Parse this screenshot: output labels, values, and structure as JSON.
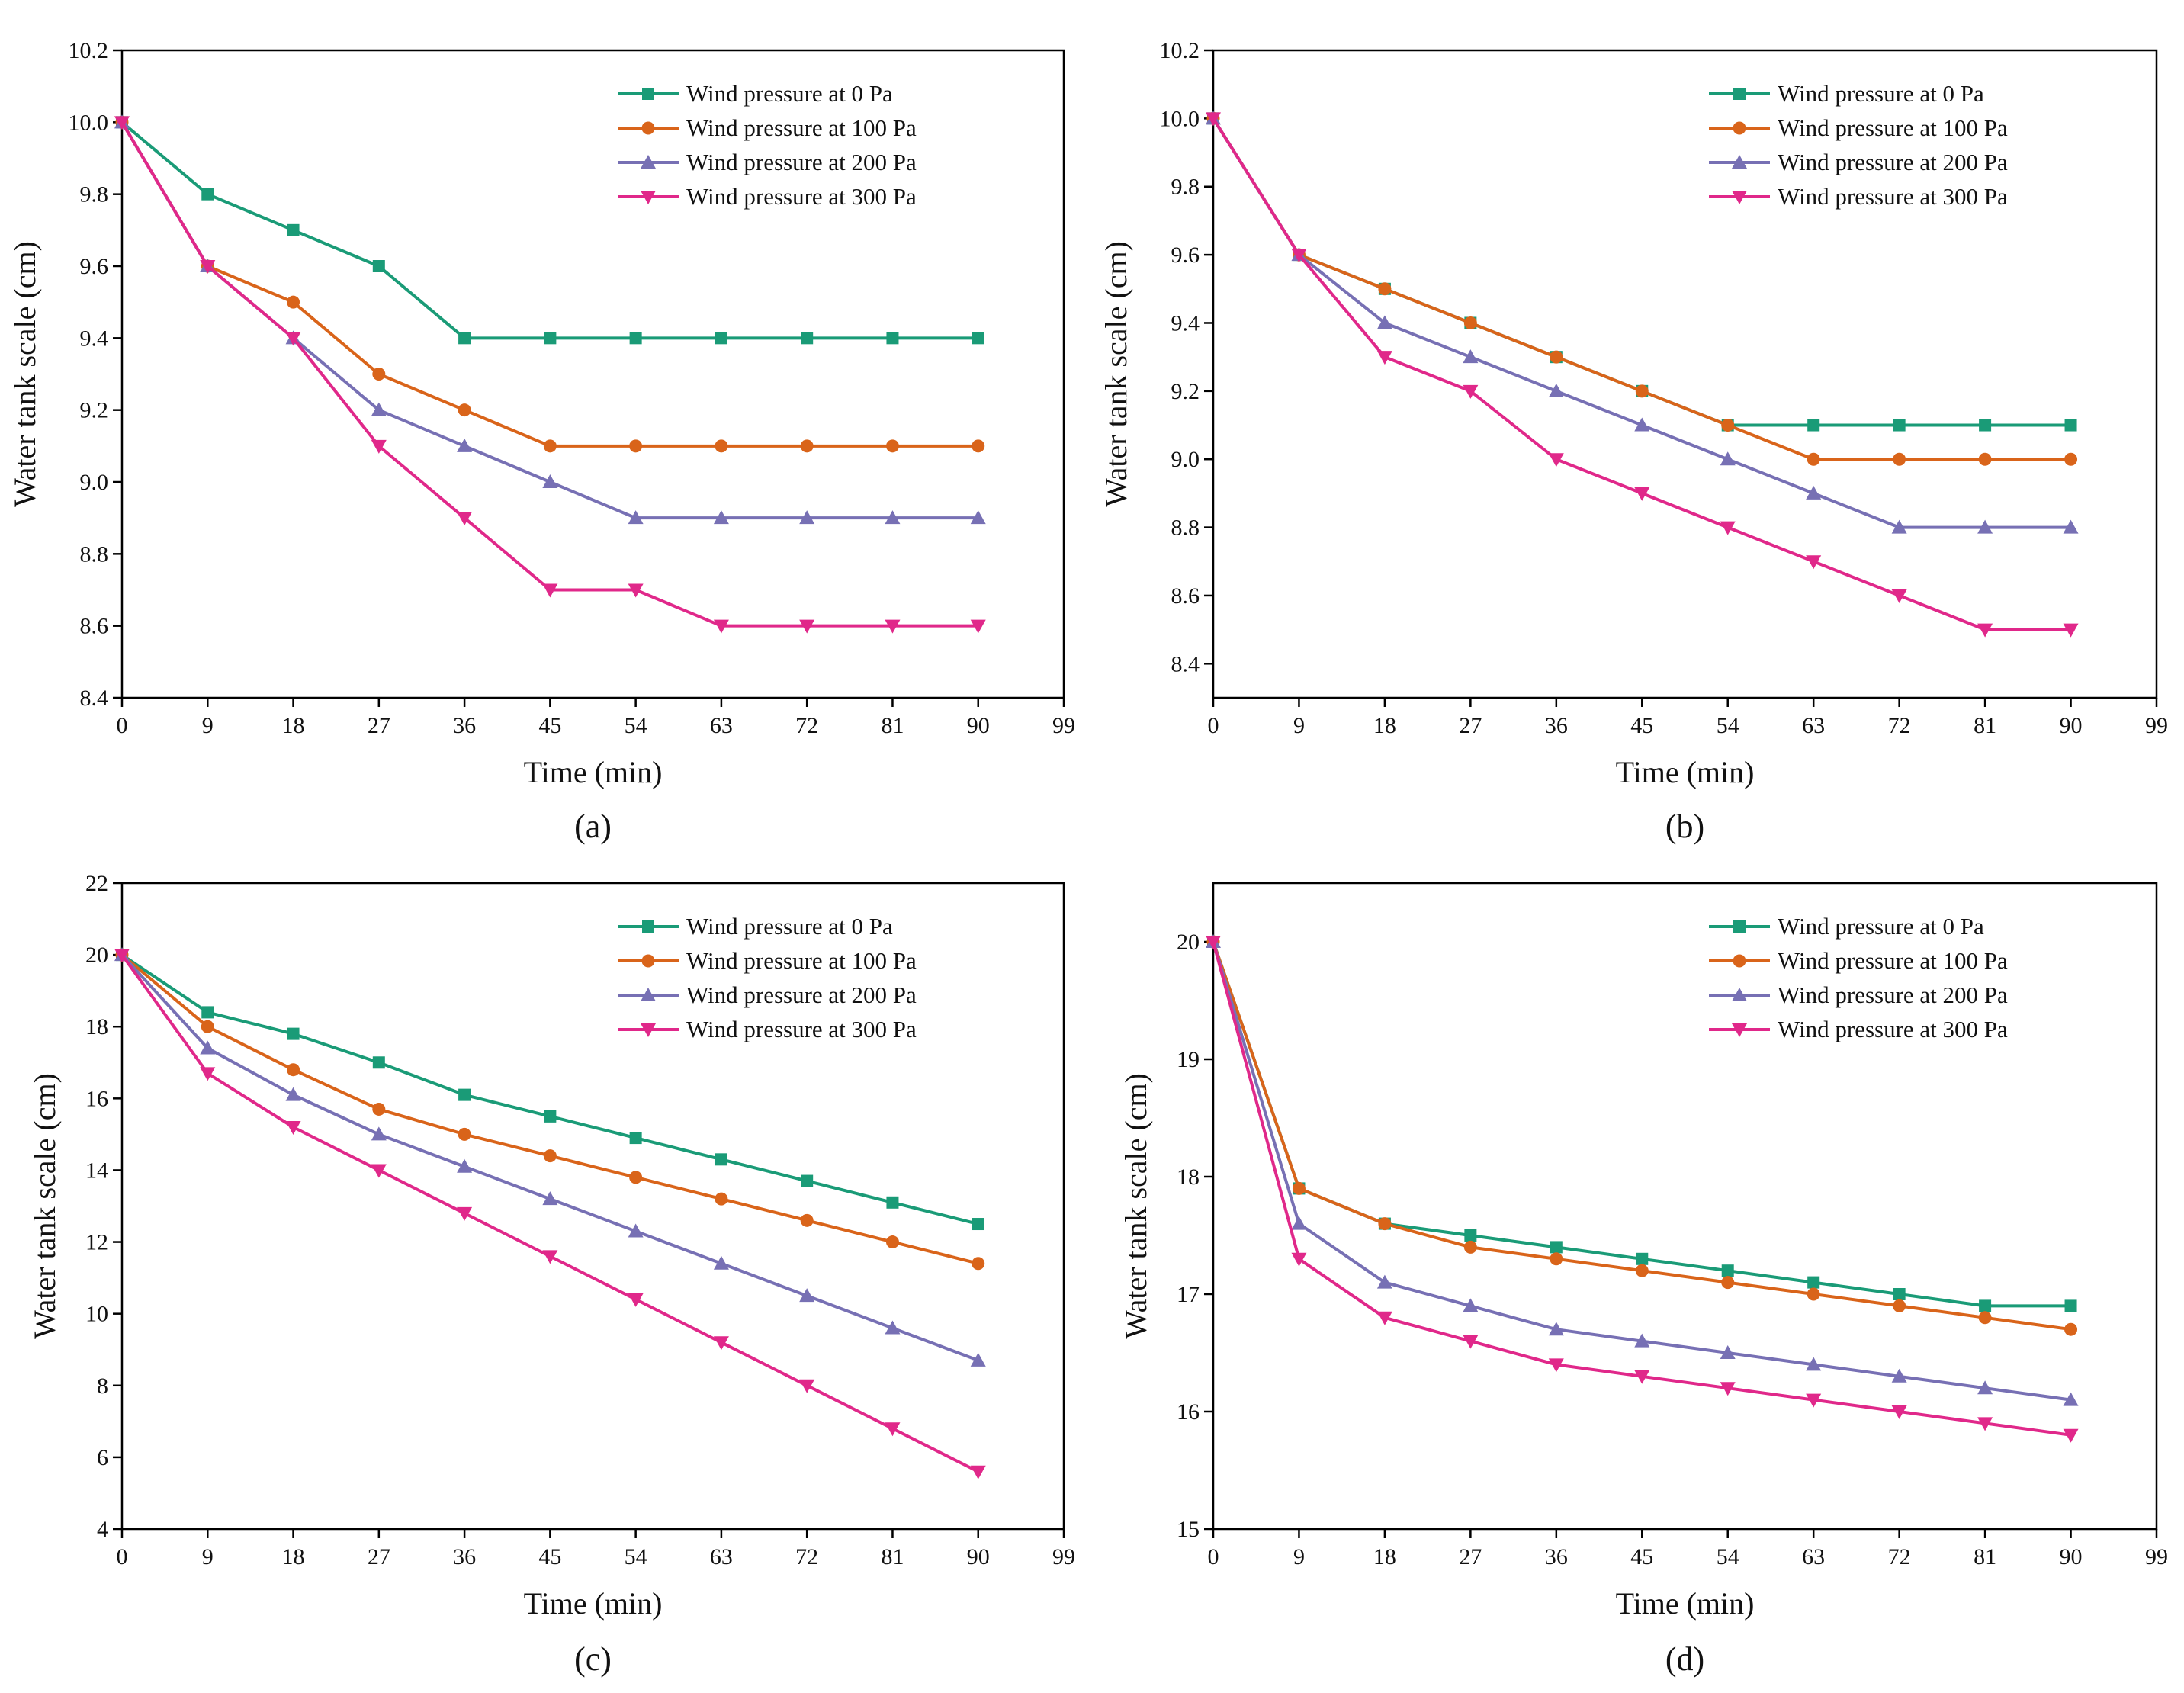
{
  "chart_data": [
    {
      "type": "line",
      "caption": "(a)",
      "xlabel": "Time (min)",
      "ylabel": "Water tank scale (cm)",
      "x_ticks": [
        "0",
        "9",
        "18",
        "27",
        "36",
        "45",
        "54",
        "63",
        "72",
        "81",
        "90",
        "99"
      ],
      "y_ticks": [
        "8.4",
        "8.6",
        "8.8",
        "9.0",
        "9.2",
        "9.4",
        "9.6",
        "9.8",
        "10.0",
        "10.2"
      ],
      "xlim": [
        0,
        99
      ],
      "ylim": [
        8.4,
        10.2
      ],
      "x": [
        0,
        9,
        18,
        27,
        36,
        45,
        54,
        63,
        72,
        81,
        90
      ],
      "legend_position": "top-right",
      "series": [
        {
          "name": "Wind pressure at 0 Pa",
          "color": "#1a9b77",
          "marker": "square",
          "values": [
            10.0,
            9.8,
            9.7,
            9.6,
            9.4,
            9.4,
            9.4,
            9.4,
            9.4,
            9.4,
            9.4
          ]
        },
        {
          "name": "Wind pressure at 100 Pa",
          "color": "#d9641a",
          "marker": "circle",
          "values": [
            10.0,
            9.6,
            9.5,
            9.3,
            9.2,
            9.1,
            9.1,
            9.1,
            9.1,
            9.1,
            9.1
          ]
        },
        {
          "name": "Wind pressure at 200 Pa",
          "color": "#7770b4",
          "marker": "triangle-up",
          "values": [
            10.0,
            9.6,
            9.4,
            9.2,
            9.1,
            9.0,
            8.9,
            8.9,
            8.9,
            8.9,
            8.9
          ]
        },
        {
          "name": "Wind pressure at 300 Pa",
          "color": "#e0288a",
          "marker": "triangle-down",
          "values": [
            10.0,
            9.6,
            9.4,
            9.1,
            8.9,
            8.7,
            8.7,
            8.6,
            8.6,
            8.6,
            8.6
          ]
        }
      ]
    },
    {
      "type": "line",
      "caption": "(b)",
      "xlabel": "Time (min)",
      "ylabel": "Water tank scale (cm)",
      "x_ticks": [
        "0",
        "9",
        "18",
        "27",
        "36",
        "45",
        "54",
        "63",
        "72",
        "81",
        "90",
        "99"
      ],
      "y_ticks": [
        "8.4",
        "8.6",
        "8.8",
        "9.0",
        "9.2",
        "9.4",
        "9.6",
        "9.8",
        "10.0",
        "10.2"
      ],
      "xlim": [
        0,
        99
      ],
      "ylim": [
        8.3,
        10.2
      ],
      "x": [
        0,
        9,
        18,
        27,
        36,
        45,
        54,
        63,
        72,
        81,
        90
      ],
      "legend_position": "top-right",
      "series": [
        {
          "name": "Wind pressure at 0 Pa",
          "color": "#1a9b77",
          "marker": "square",
          "values": [
            10.0,
            9.6,
            9.5,
            9.4,
            9.3,
            9.2,
            9.1,
            9.1,
            9.1,
            9.1,
            9.1
          ]
        },
        {
          "name": "Wind pressure at 100 Pa",
          "color": "#d9641a",
          "marker": "circle",
          "values": [
            10.0,
            9.6,
            9.5,
            9.4,
            9.3,
            9.2,
            9.1,
            9.0,
            9.0,
            9.0,
            9.0
          ]
        },
        {
          "name": "Wind pressure at 200 Pa",
          "color": "#7770b4",
          "marker": "triangle-up",
          "values": [
            10.0,
            9.6,
            9.4,
            9.3,
            9.2,
            9.1,
            9.0,
            8.9,
            8.8,
            8.8,
            8.8
          ]
        },
        {
          "name": "Wind pressure at 300 Pa",
          "color": "#e0288a",
          "marker": "triangle-down",
          "values": [
            10.0,
            9.6,
            9.3,
            9.2,
            9.0,
            8.9,
            8.8,
            8.7,
            8.6,
            8.5,
            8.5
          ]
        }
      ]
    },
    {
      "type": "line",
      "caption": "(c)",
      "xlabel": "Time (min)",
      "ylabel": "Water tank scale (cm)",
      "x_ticks": [
        "0",
        "9",
        "18",
        "27",
        "36",
        "45",
        "54",
        "63",
        "72",
        "81",
        "90",
        "99"
      ],
      "y_ticks": [
        "4",
        "6",
        "8",
        "10",
        "12",
        "14",
        "16",
        "18",
        "20",
        "22"
      ],
      "xlim": [
        0,
        99
      ],
      "ylim": [
        4,
        22
      ],
      "x": [
        0,
        9,
        18,
        27,
        36,
        45,
        54,
        63,
        72,
        81,
        90
      ],
      "legend_position": "top-right",
      "series": [
        {
          "name": "Wind pressure at 0 Pa",
          "color": "#1a9b77",
          "marker": "square",
          "values": [
            20.0,
            18.4,
            17.8,
            17.0,
            16.1,
            15.5,
            14.9,
            14.3,
            13.7,
            13.1,
            12.5
          ]
        },
        {
          "name": "Wind pressure at 100 Pa",
          "color": "#d9641a",
          "marker": "circle",
          "values": [
            20.0,
            18.0,
            16.8,
            15.7,
            15.0,
            14.4,
            13.8,
            13.2,
            12.6,
            12.0,
            11.4
          ]
        },
        {
          "name": "Wind pressure at 200 Pa",
          "color": "#7770b4",
          "marker": "triangle-up",
          "values": [
            20.0,
            17.4,
            16.1,
            15.0,
            14.1,
            13.2,
            12.3,
            11.4,
            10.5,
            9.6,
            8.7
          ]
        },
        {
          "name": "Wind pressure at 300 Pa",
          "color": "#e0288a",
          "marker": "triangle-down",
          "values": [
            20.0,
            16.7,
            15.2,
            14.0,
            12.8,
            11.6,
            10.4,
            9.2,
            8.0,
            6.8,
            5.6
          ]
        }
      ]
    },
    {
      "type": "line",
      "caption": "(d)",
      "xlabel": "Time (min)",
      "ylabel": "Water tank scale (cm)",
      "x_ticks": [
        "0",
        "9",
        "18",
        "27",
        "36",
        "45",
        "54",
        "63",
        "72",
        "81",
        "90",
        "99"
      ],
      "y_ticks": [
        "15",
        "16",
        "17",
        "18",
        "19",
        "20"
      ],
      "xlim": [
        0,
        99
      ],
      "ylim": [
        15,
        20.5
      ],
      "x": [
        0,
        9,
        18,
        27,
        36,
        45,
        54,
        63,
        72,
        81,
        90
      ],
      "legend_position": "top-right",
      "series": [
        {
          "name": "Wind pressure at 0 Pa",
          "color": "#1a9b77",
          "marker": "square",
          "values": [
            20.0,
            17.9,
            17.6,
            17.5,
            17.4,
            17.3,
            17.2,
            17.1,
            17.0,
            16.9,
            16.9
          ]
        },
        {
          "name": "Wind pressure at 100 Pa",
          "color": "#d9641a",
          "marker": "circle",
          "values": [
            20.0,
            17.9,
            17.6,
            17.4,
            17.3,
            17.2,
            17.1,
            17.0,
            16.9,
            16.8,
            16.7
          ]
        },
        {
          "name": "Wind pressure at 200 Pa",
          "color": "#7770b4",
          "marker": "triangle-up",
          "values": [
            20.0,
            17.6,
            17.1,
            16.9,
            16.7,
            16.6,
            16.5,
            16.4,
            16.3,
            16.2,
            16.1
          ]
        },
        {
          "name": "Wind pressure at 300 Pa",
          "color": "#e0288a",
          "marker": "triangle-down",
          "values": [
            20.0,
            17.3,
            16.8,
            16.6,
            16.4,
            16.3,
            16.2,
            16.1,
            16.0,
            15.9,
            15.8
          ]
        }
      ]
    }
  ]
}
